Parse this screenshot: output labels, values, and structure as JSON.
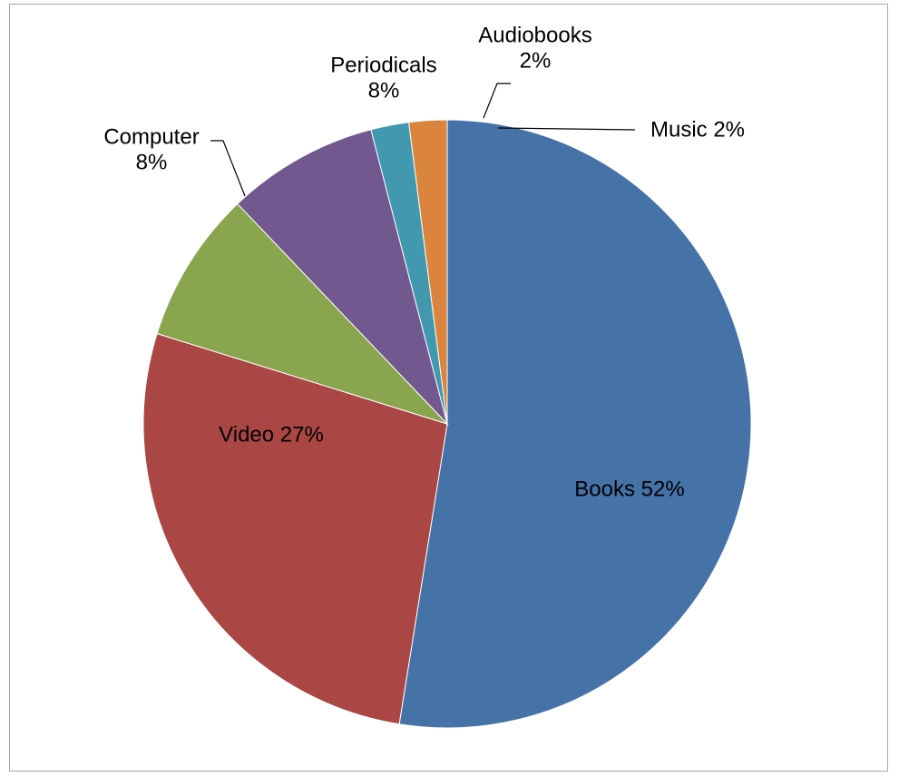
{
  "chart_data": {
    "type": "pie",
    "start_angle_deg": 90,
    "direction": "clockwise",
    "slices": [
      {
        "label": "Books",
        "value": 52,
        "value_label": "52%",
        "color": "#4572a7"
      },
      {
        "label": "Video",
        "value": 27,
        "value_label": "27%",
        "color": "#aa4643"
      },
      {
        "label": "Computer",
        "value": 8,
        "value_label": "8%",
        "color": "#89a54e"
      },
      {
        "label": "Periodicals",
        "value": 8,
        "value_label": "8%",
        "color": "#71588f"
      },
      {
        "label": "Audiobooks",
        "value": 2,
        "value_label": "2%",
        "color": "#4198af"
      },
      {
        "label": "Music",
        "value": 2,
        "value_label": "2%",
        "color": "#db843d"
      }
    ],
    "data_label_text": [
      [
        "Books 52%"
      ],
      [
        "Video 27%"
      ],
      [
        "Computer",
        "8%"
      ],
      [
        "Periodicals",
        "8%"
      ],
      [
        "Audiobooks",
        "2%"
      ],
      [
        "Music 2%"
      ]
    ],
    "legend": "none"
  }
}
